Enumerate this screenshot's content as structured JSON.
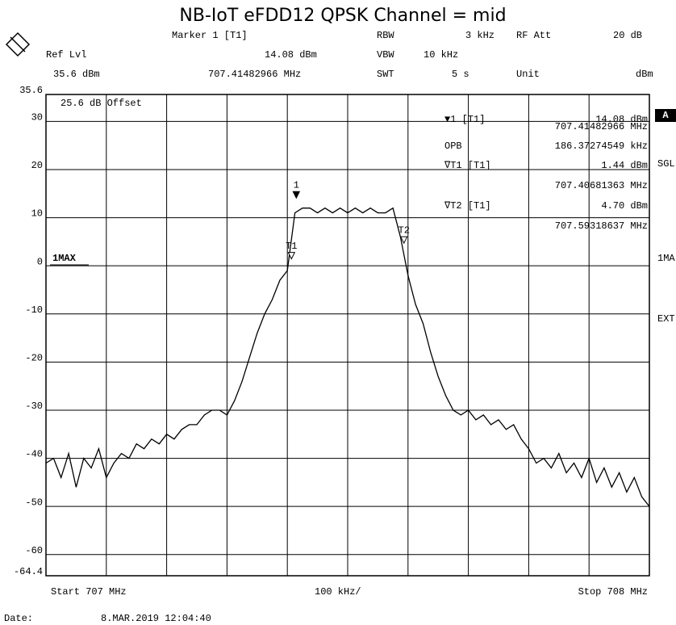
{
  "chart_data": {
    "type": "line",
    "title": "NB-IoT eFDD12 QPSK Channel = mid",
    "header": [
      "Marker 1 [T1]",
      "RBW",
      "3 kHz",
      "RF Att",
      "20 dB",
      "Ref Lvl",
      "14.08 dBm",
      "VBW",
      "10 kHz",
      "35.6 dBm",
      "707.41482966 MHz",
      "SWT",
      "5 s",
      "Unit",
      "dBm"
    ],
    "marker_table": [
      "▼1 [T1]",
      "14.08 dBm",
      "707.41482966 MHz",
      "OPB",
      "186.37274549 kHz",
      "∇T1 [T1]",
      "1.44 dBm",
      "707.40681363 MHz",
      "∇T2 [T1]",
      "4.70 dBm",
      "707.59318637 MHz"
    ],
    "offset_label": "25.6 dB Offset",
    "trace_label": "1MAX",
    "side_labels": [
      "A",
      "SGL",
      "1MA",
      "EXT"
    ],
    "footer": [
      "Start 707 MHz",
      "100 kHz/",
      "Stop 708 MHz",
      "Date:",
      "8.MAR.2019  12:04:40"
    ],
    "markers": [
      {
        "label": "1",
        "x": 707.41482966,
        "y": 14.08
      },
      {
        "label": "T1",
        "x": 707.40681363,
        "y": 1.44
      },
      {
        "label": "T2",
        "x": 707.59318637,
        "y": 4.7
      }
    ],
    "xlim": [
      707,
      708
    ],
    "xticks": [
      707,
      707.1,
      707.2,
      707.3,
      707.4,
      707.5,
      707.6,
      707.7,
      707.8,
      707.9,
      708
    ],
    "ylim": [
      -64.4,
      35.6
    ],
    "yticks": [
      {
        "value": 35.6,
        "label": "35.6"
      },
      30,
      20,
      10,
      0,
      -10,
      -20,
      -30,
      -40,
      -50,
      -60,
      {
        "value": -64.4,
        "label": "-64.4"
      }
    ],
    "grid": true,
    "color": "#000000",
    "x": [
      707,
      707.0125,
      707.025,
      707.0375,
      707.05,
      707.0625,
      707.075,
      707.0875,
      707.1,
      707.1125,
      707.125,
      707.1375,
      707.15,
      707.1625,
      707.175,
      707.1875,
      707.2,
      707.2125,
      707.225,
      707.2375,
      707.25,
      707.2625,
      707.275,
      707.2875,
      707.3,
      707.3125,
      707.325,
      707.3375,
      707.35,
      707.3625,
      707.375,
      707.3875,
      707.4,
      707.4125,
      707.425,
      707.4375,
      707.45,
      707.4625,
      707.475,
      707.4875,
      707.5,
      707.5125,
      707.525,
      707.5375,
      707.55,
      707.5625,
      707.575,
      707.5875,
      707.6,
      707.6125,
      707.625,
      707.6375,
      707.65,
      707.6625,
      707.675,
      707.6875,
      707.7,
      707.7125,
      707.725,
      707.7375,
      707.75,
      707.7625,
      707.775,
      707.7875,
      707.8,
      707.8125,
      707.825,
      707.8375,
      707.85,
      707.8625,
      707.875,
      707.8875,
      707.9,
      707.9125,
      707.925,
      707.9375,
      707.95,
      707.9625,
      707.975,
      707.9875,
      708
    ],
    "values": [
      -41,
      -40,
      -44,
      -39,
      -46,
      -40,
      -42,
      -38,
      -44,
      -41,
      -39,
      -40,
      -37,
      -38,
      -36,
      -37,
      -35,
      -36,
      -34,
      -33,
      -33,
      -31,
      -30,
      -30,
      -31,
      -28,
      -24,
      -19,
      -14,
      -10,
      -7,
      -3,
      -1,
      11,
      12,
      12,
      11,
      12,
      11,
      12,
      11,
      12,
      11,
      12,
      11,
      11,
      12,
      6,
      -2,
      -8,
      -12,
      -18,
      -23,
      -27,
      -30,
      -31,
      -30,
      -32,
      -31,
      -33,
      -32,
      -34,
      -33,
      -36,
      -38,
      -41,
      -40,
      -42,
      -39,
      -43,
      -41,
      -44,
      -40,
      -45,
      -42,
      -46,
      -43,
      -47,
      -44,
      -48,
      -50
    ]
  }
}
